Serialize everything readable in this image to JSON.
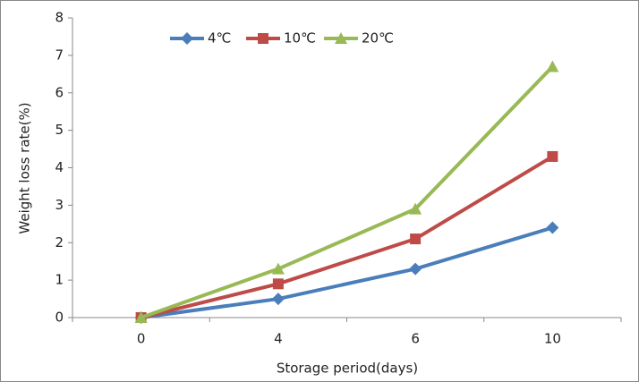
{
  "chart_data": {
    "type": "line",
    "x_label": "Storage period(days)",
    "y_label": "Weight loss rate(%)",
    "categories": [
      "0",
      "4",
      "6",
      "10"
    ],
    "series": [
      {
        "name": "4℃",
        "color": "#4a7ebb",
        "marker": "diamond",
        "values": [
          0,
          0.5,
          1.3,
          2.4
        ]
      },
      {
        "name": "10℃",
        "color": "#be4b48",
        "marker": "square",
        "values": [
          0,
          0.9,
          2.1,
          4.3
        ]
      },
      {
        "name": "20℃",
        "color": "#98b954",
        "marker": "triangle",
        "values": [
          0,
          1.3,
          2.9,
          6.7
        ]
      }
    ],
    "ylim": [
      0,
      8
    ],
    "yticks": [
      0,
      1,
      2,
      3,
      4,
      5,
      6,
      7,
      8
    ],
    "grid": false,
    "legend": "top"
  }
}
